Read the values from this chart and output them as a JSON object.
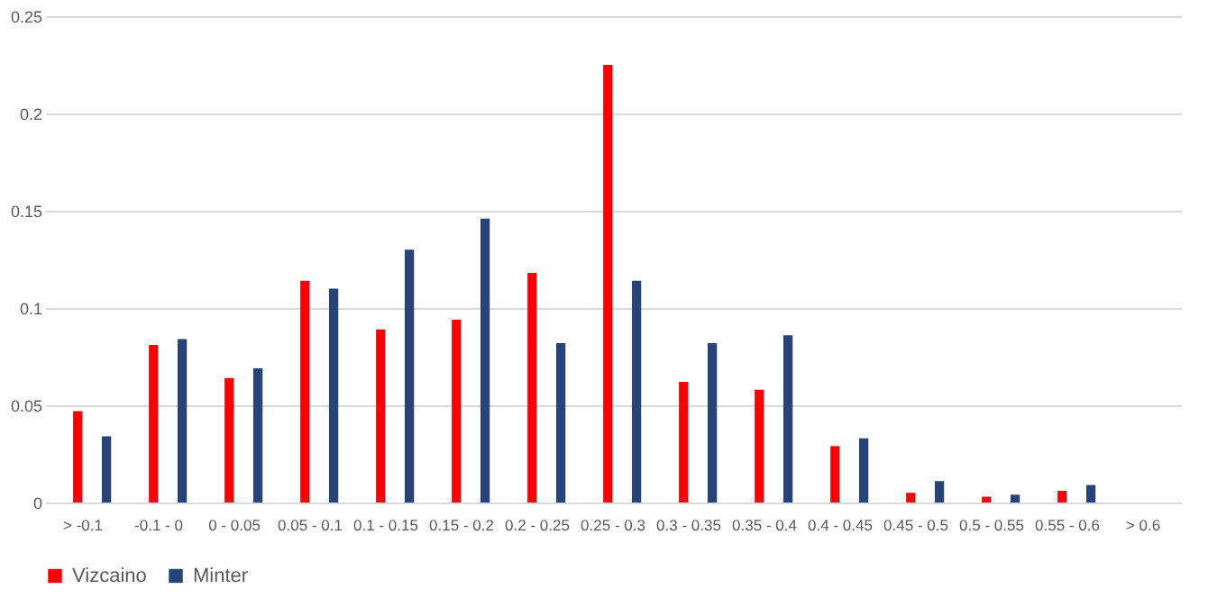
{
  "chart_data": {
    "type": "bar",
    "categories": [
      "> -0.1",
      "-0.1 - 0",
      "0 - 0.05",
      "0.05 - 0.1",
      "0.1 - 0.15",
      "0.15 - 0.2",
      "0.2 - 0.25",
      "0.25 - 0.3",
      "0.3 - 0.35",
      "0.35 - 0.4",
      "0.4 - 0.45",
      "0.45 - 0.5",
      "0.5 - 0.55",
      "0.55 - 0.6",
      "> 0.6"
    ],
    "series": [
      {
        "name": "Vizcaino",
        "color": "#ff0000",
        "values": [
          0.047,
          0.081,
          0.064,
          0.114,
          0.089,
          0.094,
          0.118,
          0.225,
          0.062,
          0.058,
          0.029,
          0.005,
          0.003,
          0.006,
          0
        ]
      },
      {
        "name": "Minter",
        "color": "#264478",
        "values": [
          0.034,
          0.084,
          0.069,
          0.11,
          0.13,
          0.146,
          0.082,
          0.114,
          0.082,
          0.086,
          0.033,
          0.011,
          0.004,
          0.009,
          0
        ]
      }
    ],
    "ylim": [
      0,
      0.25
    ],
    "yticks": [
      0,
      0.05,
      0.1,
      0.15,
      0.2,
      0.25
    ],
    "grid": "y",
    "legend": "bottom"
  }
}
